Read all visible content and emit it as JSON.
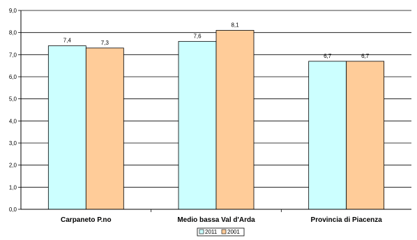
{
  "chart_data": {
    "type": "bar",
    "categories": [
      "Carpaneto P.no",
      "Medio bassa Val d'Arda",
      "Provincia di Piacenza"
    ],
    "series": [
      {
        "name": "2011",
        "values": [
          7.4,
          7.6,
          6.7
        ],
        "labels": [
          "7,4",
          "7,6",
          "6,7"
        ],
        "color": "#ccffff"
      },
      {
        "name": "2001",
        "values": [
          7.3,
          8.1,
          6.7
        ],
        "labels": [
          "7,3",
          "8,1",
          "6,7"
        ],
        "color": "#ffcc99"
      }
    ],
    "yticks": [
      "0,0",
      "1,0",
      "2,0",
      "3,0",
      "4,0",
      "5,0",
      "6,0",
      "7,0",
      "8,0",
      "9,0"
    ],
    "ylim": [
      0,
      9
    ],
    "grid": true,
    "legend": "bottom-center",
    "title": "",
    "xlabel": "",
    "ylabel": ""
  }
}
